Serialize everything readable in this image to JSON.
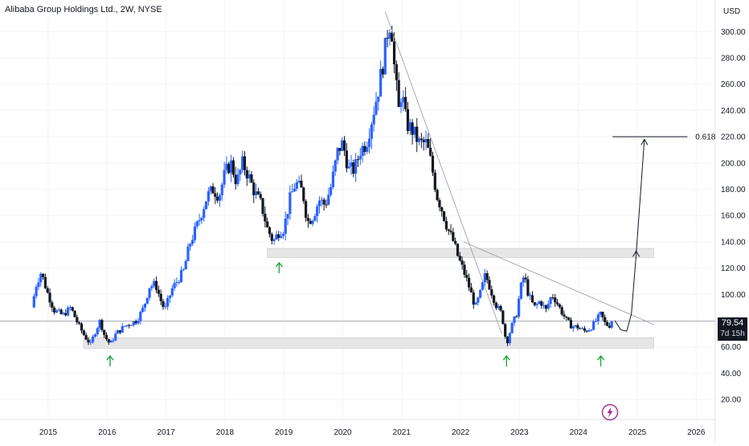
{
  "title": "Alibaba Group Holdings Ltd., 2W, NYSE",
  "currency": "USD",
  "last_price": "79.54",
  "countdown": "7d 15h",
  "fib_label": "0.618",
  "colors": {
    "up": "#2962ff",
    "up_light": "#5b8def",
    "down": "#131722",
    "arrow": "#26a641",
    "zone": "#e6e6e6",
    "zone_border": "#c8c8c8",
    "grid": "#f0f3fa",
    "trend": "#9598a1",
    "logo": "#a52d8f"
  },
  "chart_data": {
    "type": "candlestick",
    "title": "Alibaba Group Holdings Ltd., 2W, NYSE",
    "ylabel": "USD",
    "ylim": [
      10,
      315
    ],
    "y_ticks": [
      "20.00",
      "40.00",
      "60.00",
      "80.00",
      "100.00",
      "120.00",
      "140.00",
      "160.00",
      "180.00",
      "200.00",
      "220.00",
      "240.00",
      "260.00",
      "280.00",
      "300.00"
    ],
    "x_ticks": [
      "2015",
      "2016",
      "2017",
      "2018",
      "2019",
      "2020",
      "2021",
      "2022",
      "2023",
      "2024",
      "2025",
      "2026"
    ],
    "xlim": [
      2014.6,
      2026.4
    ],
    "price_path": [
      [
        2014.72,
        90
      ],
      [
        2014.8,
        108
      ],
      [
        2014.88,
        117
      ],
      [
        2014.98,
        102
      ],
      [
        2015.1,
        88
      ],
      [
        2015.25,
        84
      ],
      [
        2015.38,
        90
      ],
      [
        2015.5,
        78
      ],
      [
        2015.62,
        68
      ],
      [
        2015.72,
        62
      ],
      [
        2015.8,
        72
      ],
      [
        2015.88,
        80
      ],
      [
        2015.96,
        68
      ],
      [
        2016.05,
        62
      ],
      [
        2016.15,
        70
      ],
      [
        2016.3,
        76
      ],
      [
        2016.5,
        80
      ],
      [
        2016.62,
        90
      ],
      [
        2016.72,
        106
      ],
      [
        2016.82,
        108
      ],
      [
        2016.92,
        94
      ],
      [
        2016.98,
        88
      ],
      [
        2017.1,
        104
      ],
      [
        2017.3,
        118
      ],
      [
        2017.4,
        138
      ],
      [
        2017.55,
        155
      ],
      [
        2017.7,
        175
      ],
      [
        2017.8,
        180
      ],
      [
        2017.9,
        175
      ],
      [
        2018.0,
        192
      ],
      [
        2018.1,
        200
      ],
      [
        2018.2,
        185
      ],
      [
        2018.3,
        200
      ],
      [
        2018.4,
        190
      ],
      [
        2018.5,
        178
      ],
      [
        2018.62,
        168
      ],
      [
        2018.72,
        150
      ],
      [
        2018.82,
        140
      ],
      [
        2018.92,
        148
      ],
      [
        2019.0,
        150
      ],
      [
        2019.1,
        172
      ],
      [
        2019.2,
        185
      ],
      [
        2019.32,
        178
      ],
      [
        2019.4,
        155
      ],
      [
        2019.5,
        160
      ],
      [
        2019.6,
        172
      ],
      [
        2019.7,
        168
      ],
      [
        2019.8,
        182
      ],
      [
        2019.92,
        210
      ],
      [
        2020.0,
        215
      ],
      [
        2020.1,
        195
      ],
      [
        2020.2,
        195
      ],
      [
        2020.3,
        210
      ],
      [
        2020.4,
        215
      ],
      [
        2020.5,
        235
      ],
      [
        2020.6,
        255
      ],
      [
        2020.7,
        280
      ],
      [
        2020.76,
        300
      ],
      [
        2020.82,
        310
      ],
      [
        2020.88,
        270
      ],
      [
        2020.95,
        240
      ],
      [
        2021.0,
        255
      ],
      [
        2021.08,
        230
      ],
      [
        2021.18,
        225
      ],
      [
        2021.3,
        215
      ],
      [
        2021.42,
        215
      ],
      [
        2021.5,
        200
      ],
      [
        2021.6,
        175
      ],
      [
        2021.68,
        165
      ],
      [
        2021.78,
        150
      ],
      [
        2021.88,
        140
      ],
      [
        2021.96,
        128
      ],
      [
        2022.05,
        118
      ],
      [
        2022.15,
        105
      ],
      [
        2022.25,
        90
      ],
      [
        2022.33,
        100
      ],
      [
        2022.42,
        115
      ],
      [
        2022.5,
        105
      ],
      [
        2022.6,
        92
      ],
      [
        2022.7,
        85
      ],
      [
        2022.78,
        62
      ],
      [
        2022.86,
        75
      ],
      [
        2022.95,
        85
      ],
      [
        2023.02,
        105
      ],
      [
        2023.08,
        115
      ],
      [
        2023.15,
        100
      ],
      [
        2023.25,
        90
      ],
      [
        2023.35,
        95
      ],
      [
        2023.45,
        88
      ],
      [
        2023.55,
        100
      ],
      [
        2023.62,
        95
      ],
      [
        2023.7,
        88
      ],
      [
        2023.8,
        80
      ],
      [
        2023.88,
        76
      ],
      [
        2024.0,
        75
      ],
      [
        2024.1,
        72
      ],
      [
        2024.2,
        74
      ],
      [
        2024.3,
        80
      ],
      [
        2024.38,
        85
      ],
      [
        2024.45,
        78
      ],
      [
        2024.52,
        76
      ],
      [
        2024.58,
        79.54
      ]
    ],
    "last_price": 79.54,
    "annotations": {
      "zones": [
        {
          "x": [
            2018.72,
            2025.28
          ],
          "y": [
            128,
            135
          ]
        },
        {
          "x": [
            2015.6,
            2025.28
          ],
          "y": [
            59,
            67
          ]
        }
      ],
      "trendlines": [
        {
          "from": [
            2020.72,
            315
          ],
          "to": [
            2022.7,
            70
          ]
        },
        {
          "from": [
            2022.05,
            140
          ],
          "to": [
            2025.28,
            77
          ]
        }
      ],
      "fib_level": {
        "value": 220,
        "label": "0.618",
        "x": [
          2024.58,
          2025.85
        ]
      },
      "projected_path": [
        [
          2024.62,
          80
        ],
        [
          2024.72,
          73
        ],
        [
          2024.82,
          72
        ],
        [
          2024.9,
          85
        ],
        [
          2024.98,
          130
        ],
        [
          2025.06,
          180
        ],
        [
          2025.12,
          218
        ]
      ],
      "support_arrows": [
        {
          "x": 2016.05,
          "y": 50
        },
        {
          "x": 2018.92,
          "y": 121
        },
        {
          "x": 2022.78,
          "y": 50
        },
        {
          "x": 2024.38,
          "y": 50
        }
      ]
    }
  }
}
